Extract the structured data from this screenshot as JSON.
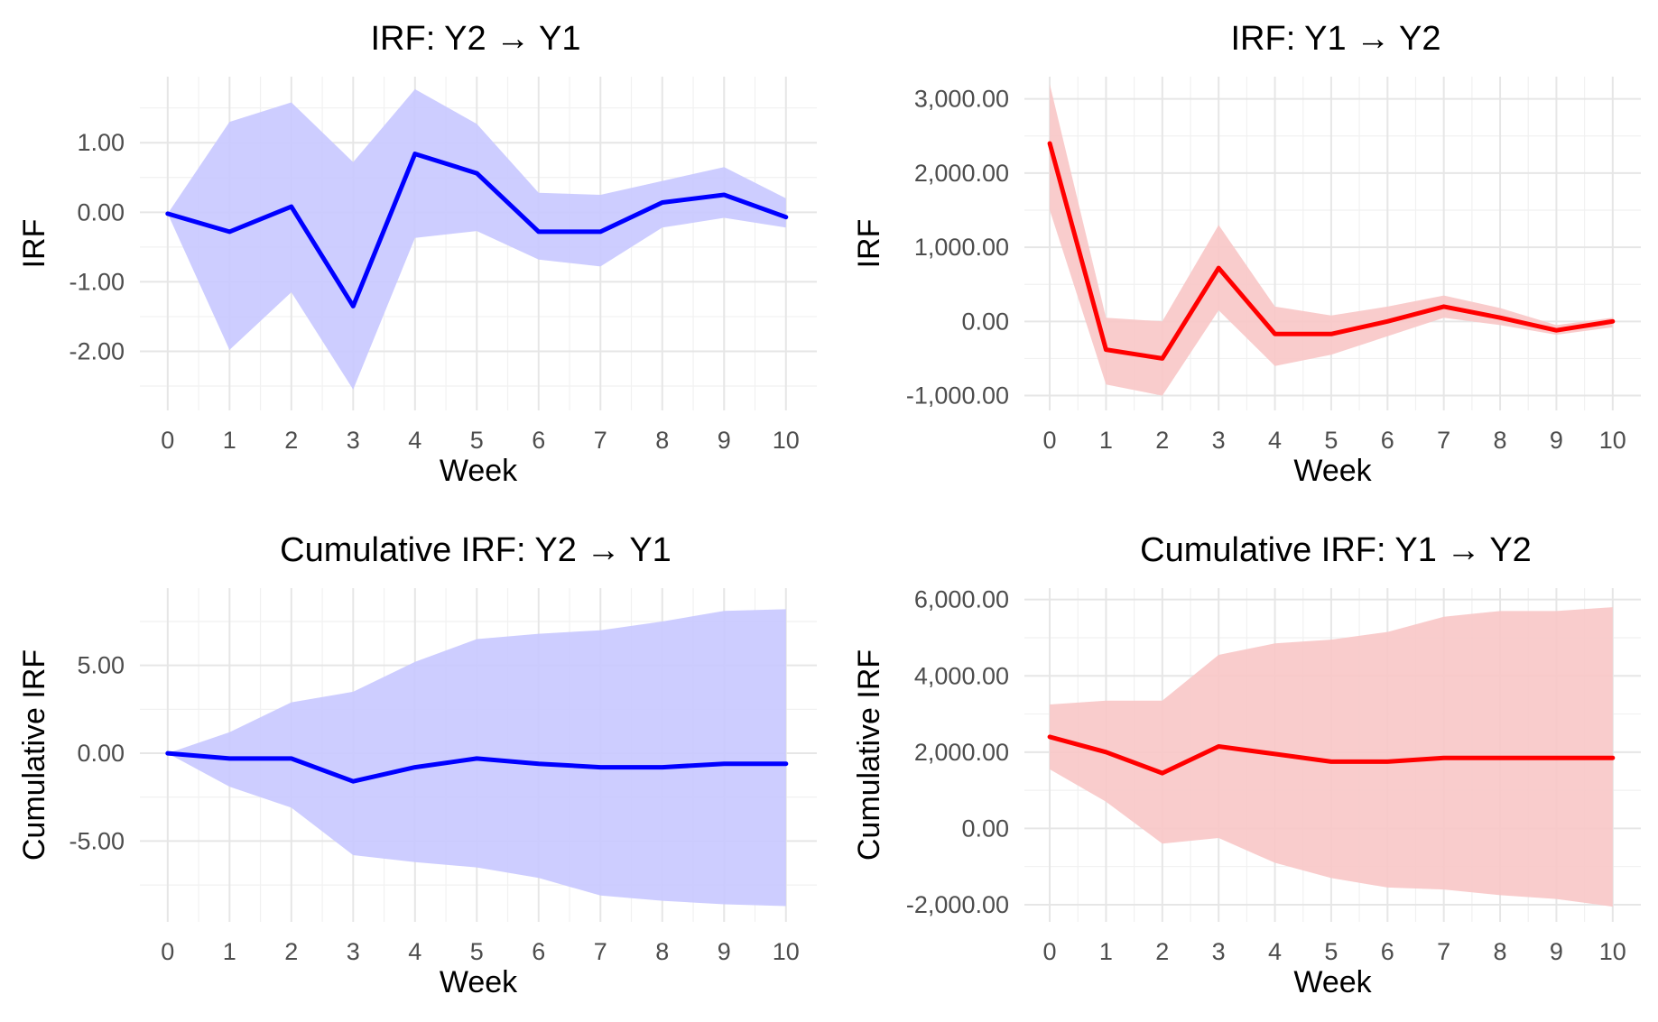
{
  "chart_data": [
    {
      "type": "line",
      "title": "IRF: Y2 → Y1",
      "xlabel": "Week",
      "ylabel": "IRF",
      "x": [
        0,
        1,
        2,
        3,
        4,
        5,
        6,
        7,
        8,
        9,
        10
      ],
      "series": [
        {
          "values": [
            -0.02,
            -0.28,
            0.08,
            -1.35,
            0.84,
            0.56,
            -0.28,
            -0.28,
            0.14,
            0.25,
            -0.07
          ],
          "lower": [
            -0.02,
            -1.98,
            -1.15,
            -2.55,
            -0.37,
            -0.27,
            -0.68,
            -0.78,
            -0.22,
            -0.08,
            -0.22
          ],
          "upper": [
            -0.02,
            1.3,
            1.58,
            0.72,
            1.77,
            1.27,
            0.28,
            0.25,
            0.45,
            0.65,
            0.2
          ]
        }
      ],
      "xlim": [
        -0.45,
        10.5
      ],
      "ylim": [
        -2.85,
        1.95
      ],
      "yticks": [
        1,
        0,
        -1,
        -2
      ],
      "ytick_labels": [
        "1.00",
        "0.00",
        "-1.00",
        "-2.00"
      ],
      "color": "#0000ff",
      "band_color": "#c8c8ff",
      "grid": true,
      "legend": "none"
    },
    {
      "type": "line",
      "title": "IRF: Y1 → Y2",
      "xlabel": "Week",
      "ylabel": "IRF",
      "x": [
        0,
        1,
        2,
        3,
        4,
        5,
        6,
        7,
        8,
        9,
        10
      ],
      "series": [
        {
          "values": [
            2400,
            -380,
            -500,
            720,
            -170,
            -170,
            0,
            200,
            50,
            -120,
            0
          ],
          "lower": [
            1500,
            -850,
            -1000,
            150,
            -600,
            -450,
            -200,
            50,
            -50,
            -180,
            -80
          ],
          "upper": [
            3200,
            50,
            0,
            1300,
            200,
            80,
            200,
            350,
            180,
            -50,
            50
          ]
        }
      ],
      "xlim": [
        -0.45,
        10.5
      ],
      "ylim": [
        -1200,
        3300
      ],
      "yticks": [
        3000,
        2000,
        1000,
        0,
        -1000
      ],
      "ytick_labels": [
        "3,000.00",
        "2,000.00",
        "1,000.00",
        "0.00",
        "-1,000.00"
      ],
      "color": "#ff0000",
      "band_color": "#f8c6c6",
      "grid": true,
      "legend": "none"
    },
    {
      "type": "line",
      "title": "Cumulative IRF: Y2 → Y1",
      "xlabel": "Week",
      "ylabel": "Cumulative IRF",
      "x": [
        0,
        1,
        2,
        3,
        4,
        5,
        6,
        7,
        8,
        9,
        10
      ],
      "series": [
        {
          "values": [
            0,
            -0.3,
            -0.3,
            -1.6,
            -0.8,
            -0.3,
            -0.6,
            -0.8,
            -0.8,
            -0.6,
            -0.6
          ],
          "lower": [
            0,
            -1.9,
            -3.1,
            -5.8,
            -6.2,
            -6.5,
            -7.1,
            -8.1,
            -8.4,
            -8.6,
            -8.7
          ],
          "upper": [
            0,
            1.2,
            2.9,
            3.5,
            5.2,
            6.5,
            6.8,
            7.0,
            7.5,
            8.1,
            8.2
          ]
        }
      ],
      "xlim": [
        -0.45,
        10.5
      ],
      "ylim": [
        -9.6,
        9.4
      ],
      "yticks": [
        5,
        0,
        -5
      ],
      "ytick_labels": [
        "5.00",
        "0.00",
        "-5.00"
      ],
      "color": "#0000ff",
      "band_color": "#c8c8ff",
      "grid": true,
      "legend": "none"
    },
    {
      "type": "line",
      "title": "Cumulative IRF: Y1 → Y2",
      "xlabel": "Week",
      "ylabel": "Cumulative IRF",
      "x": [
        0,
        1,
        2,
        3,
        4,
        5,
        6,
        7,
        8,
        9,
        10
      ],
      "series": [
        {
          "values": [
            2400,
            2000,
            1450,
            2150,
            1950,
            1750,
            1750,
            1850,
            1850,
            1850,
            1850
          ],
          "lower": [
            1550,
            700,
            -400,
            -250,
            -900,
            -1300,
            -1550,
            -1600,
            -1750,
            -1850,
            -2050
          ],
          "upper": [
            3250,
            3350,
            3350,
            4550,
            4850,
            4950,
            5150,
            5550,
            5700,
            5700,
            5800
          ]
        }
      ],
      "xlim": [
        -0.45,
        10.5
      ],
      "ylim": [
        -2450,
        6300
      ],
      "yticks": [
        6000,
        4000,
        2000,
        0,
        -2000
      ],
      "ytick_labels": [
        "6,000.00",
        "4,000.00",
        "2,000.00",
        "0.00",
        "-2,000.00"
      ],
      "color": "#ff0000",
      "band_color": "#f8c6c6",
      "grid": true,
      "legend": "none"
    }
  ]
}
